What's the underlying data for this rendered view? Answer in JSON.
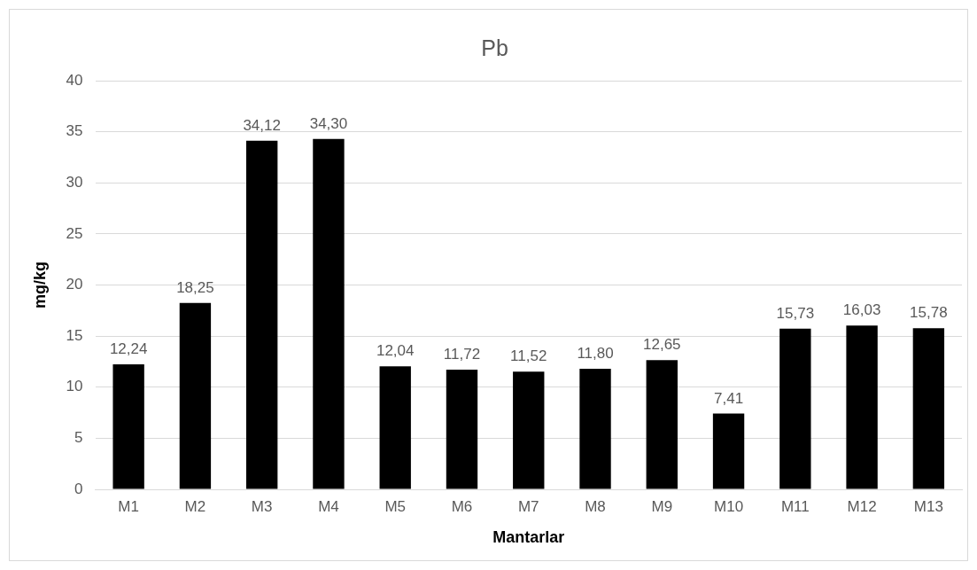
{
  "chart_data": {
    "type": "bar",
    "title": "Pb",
    "xlabel": "Mantarlar",
    "ylabel": "mg/kg",
    "categories": [
      "M1",
      "M2",
      "M3",
      "M4",
      "M5",
      "M6",
      "M7",
      "M8",
      "M9",
      "M10",
      "M11",
      "M12",
      "M13"
    ],
    "values": [
      12.24,
      18.25,
      34.12,
      34.3,
      12.04,
      11.72,
      11.52,
      11.8,
      12.65,
      7.41,
      15.73,
      16.03,
      15.78
    ],
    "value_labels": [
      "12,24",
      "18,25",
      "34,12",
      "34,30",
      "12,04",
      "11,72",
      "11,52",
      "11,80",
      "12,65",
      "7,41",
      "15,73",
      "16,03",
      "15,78"
    ],
    "color": "#000000",
    "ylim": [
      0,
      40
    ],
    "yticks": [
      0,
      5,
      10,
      15,
      20,
      25,
      30,
      35,
      40
    ],
    "grid": "y",
    "legend": false
  }
}
